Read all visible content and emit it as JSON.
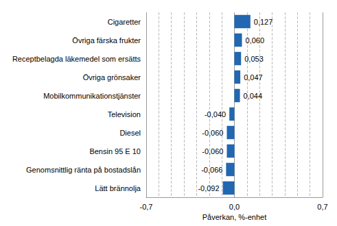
{
  "chart_data": {
    "type": "bar",
    "orientation": "horizontal",
    "categories": [
      "Cigaretter",
      "Övriga färska frukter",
      "Receptbelagda läkemedel som ersätts",
      "Övriga grönsaker",
      "Mobilkommunikationstjänster",
      "Television",
      "Diesel",
      "Bensin 95 E 10",
      "Genomsnittlig ränta på bostadslån",
      "Lätt brännolja"
    ],
    "values": [
      0.127,
      0.06,
      0.053,
      0.047,
      0.044,
      -0.04,
      -0.06,
      -0.06,
      -0.066,
      -0.092
    ],
    "value_labels": [
      "0,127",
      "0,060",
      "0,053",
      "0,047",
      "0,044",
      "-0,040",
      "-0,060",
      "-0,060",
      "-0,066",
      "-0,092"
    ],
    "data_labels": true,
    "color": "#2167b1",
    "x_label": "Påverkan, %-enhet",
    "xlim": [
      -0.7,
      0.7
    ],
    "xticks": [
      {
        "value": -0.7,
        "label": "-0,7"
      },
      {
        "value": 0,
        "label": "0,0"
      },
      {
        "value": 0.7,
        "label": "0,7"
      }
    ],
    "grid": true
  }
}
